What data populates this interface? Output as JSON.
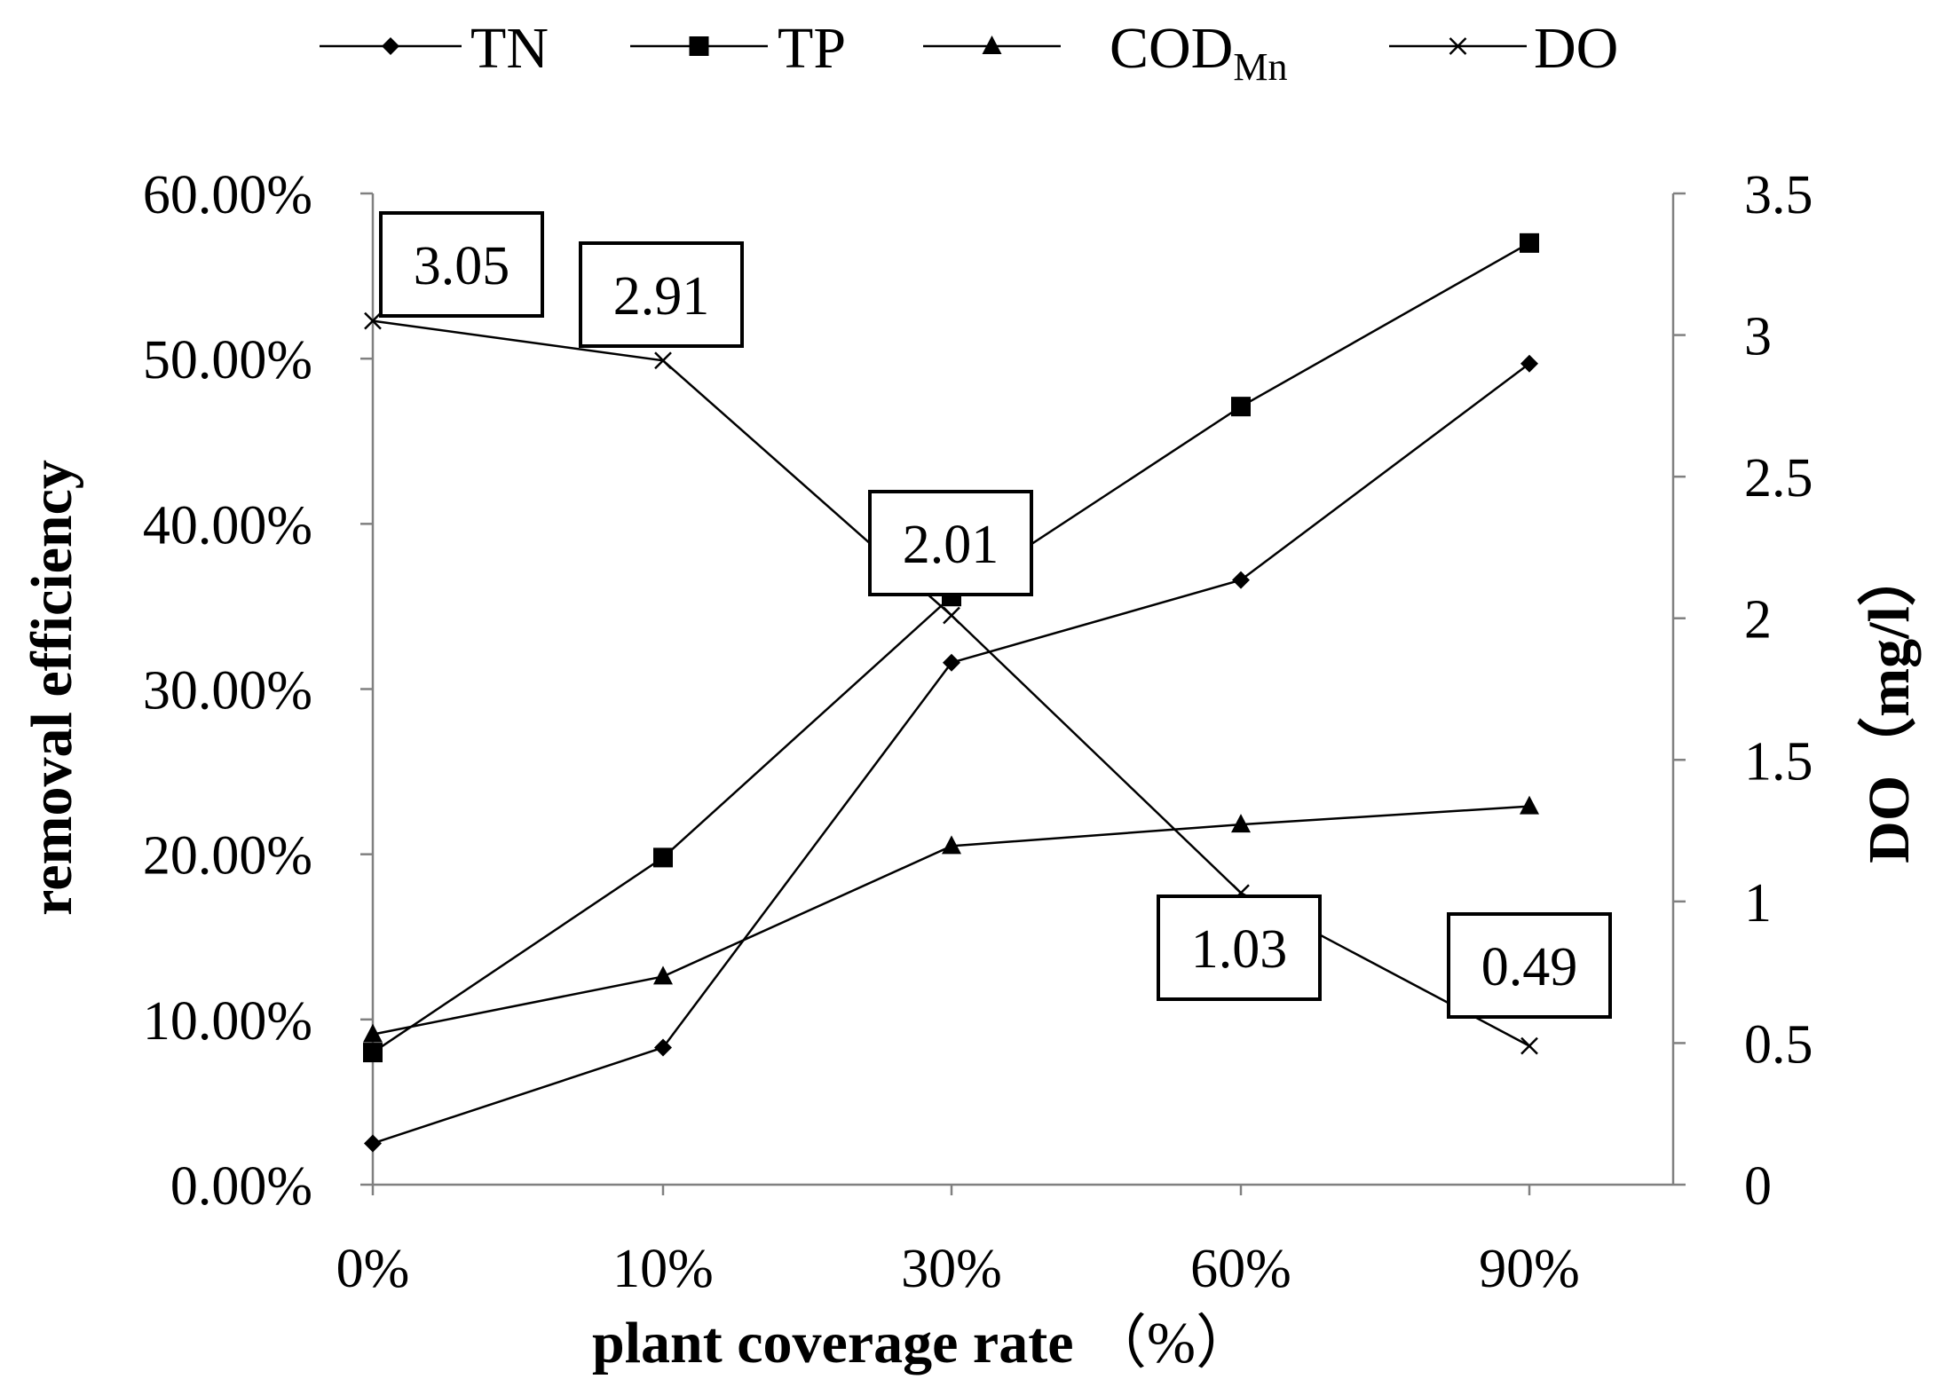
{
  "chart_data": {
    "type": "line",
    "categories": [
      "0%",
      "10%",
      "30%",
      "60%",
      "90%"
    ],
    "xlabel": "plant coverage rate",
    "xlabel_suffix": "（%）",
    "ylabel": "removal efficiency",
    "y2label": "DO（mg/l）",
    "y_ticks": [
      "0.00%",
      "10.00%",
      "20.00%",
      "30.00%",
      "40.00%",
      "50.00%",
      "60.00%"
    ],
    "y2_ticks": [
      "0",
      "0.5",
      "1",
      "1.5",
      "2",
      "2.5",
      "3",
      "3.5"
    ],
    "ylim": [
      0,
      0.6
    ],
    "y2lim": [
      0,
      3.5
    ],
    "grid": false,
    "legend_position": "top",
    "series": [
      {
        "name": "TN",
        "name_sub": "",
        "axis": "left",
        "marker": "diamond",
        "values": [
          0.025,
          0.083,
          0.316,
          0.366,
          0.497
        ]
      },
      {
        "name": "TP",
        "name_sub": "",
        "axis": "left",
        "marker": "square",
        "values": [
          0.08,
          0.198,
          0.356,
          0.471,
          0.57
        ]
      },
      {
        "name": "COD",
        "name_sub": "Mn",
        "axis": "left",
        "marker": "triangle",
        "values": [
          0.091,
          0.126,
          0.205,
          0.218,
          0.229
        ]
      },
      {
        "name": "DO",
        "name_sub": "",
        "axis": "right",
        "marker": "x",
        "values": [
          3.05,
          2.91,
          2.01,
          1.03,
          0.49
        ]
      }
    ],
    "annotations": [
      "3.05",
      "2.91",
      "2.01",
      "1.03",
      "0.49"
    ]
  }
}
